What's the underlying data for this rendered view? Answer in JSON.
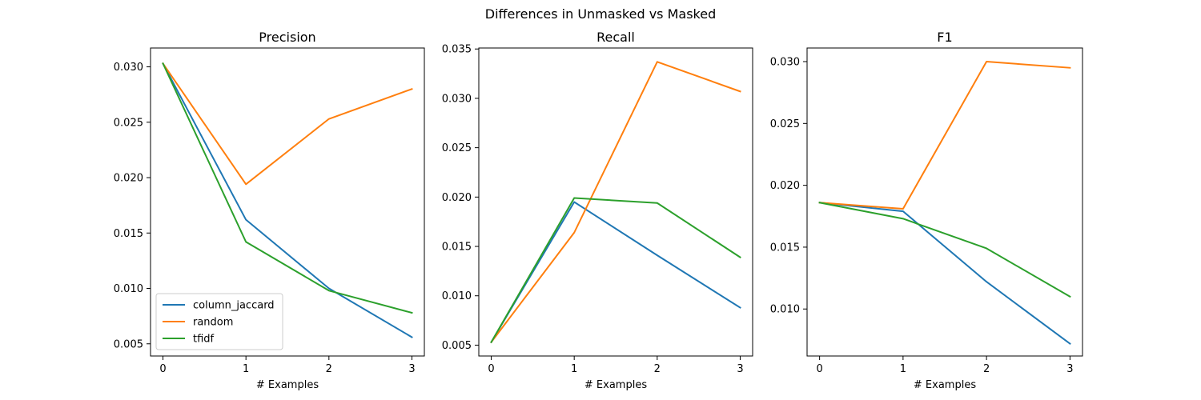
{
  "figure": {
    "suptitle": "Differences in Unmasked vs Masked"
  },
  "chart_data": [
    {
      "type": "line",
      "title": "Precision",
      "xlabel": "# Examples",
      "ylabel": "",
      "x": [
        0,
        1,
        2,
        3
      ],
      "xticks": [
        "0",
        "1",
        "2",
        "3"
      ],
      "xlim": [
        -0.15,
        3.15
      ],
      "ylim": [
        0.0039,
        0.0317
      ],
      "yticks": [
        0.005,
        0.01,
        0.015,
        0.02,
        0.025,
        0.03
      ],
      "ytick_labels": [
        "0.005",
        "0.010",
        "0.015",
        "0.020",
        "0.025",
        "0.030"
      ],
      "grid": false,
      "legend": "lower-left",
      "series": [
        {
          "name": "column_jaccard",
          "color": "#1f77b4",
          "values": [
            0.0303,
            0.0162,
            0.01,
            0.0056
          ]
        },
        {
          "name": "random",
          "color": "#ff7f0e",
          "values": [
            0.0303,
            0.0194,
            0.0253,
            0.028
          ]
        },
        {
          "name": "tfidf",
          "color": "#2ca02c",
          "values": [
            0.0303,
            0.0142,
            0.0098,
            0.0078
          ]
        }
      ]
    },
    {
      "type": "line",
      "title": "Recall",
      "xlabel": "# Examples",
      "ylabel": "",
      "x": [
        0,
        1,
        2,
        3
      ],
      "xticks": [
        "0",
        "1",
        "2",
        "3"
      ],
      "xlim": [
        -0.15,
        3.15
      ],
      "ylim": [
        0.0039,
        0.0351
      ],
      "yticks": [
        0.005,
        0.01,
        0.015,
        0.02,
        0.025,
        0.03,
        0.035
      ],
      "ytick_labels": [
        "0.005",
        "0.010",
        "0.015",
        "0.020",
        "0.025",
        "0.030",
        "0.035"
      ],
      "grid": false,
      "series": [
        {
          "name": "column_jaccard",
          "color": "#1f77b4",
          "values": [
            0.0053,
            0.0195,
            0.0141,
            0.0088
          ]
        },
        {
          "name": "random",
          "color": "#ff7f0e",
          "values": [
            0.0053,
            0.0164,
            0.0337,
            0.0307
          ]
        },
        {
          "name": "tfidf",
          "color": "#2ca02c",
          "values": [
            0.0053,
            0.0199,
            0.0194,
            0.0139
          ]
        }
      ]
    },
    {
      "type": "line",
      "title": "F1",
      "xlabel": "# Examples",
      "ylabel": "",
      "x": [
        0,
        1,
        2,
        3
      ],
      "xticks": [
        "0",
        "1",
        "2",
        "3"
      ],
      "xlim": [
        -0.15,
        3.15
      ],
      "ylim": [
        0.0062,
        0.0311
      ],
      "yticks": [
        0.01,
        0.015,
        0.02,
        0.025,
        0.03
      ],
      "ytick_labels": [
        "0.010",
        "0.015",
        "0.020",
        "0.025",
        "0.030"
      ],
      "grid": false,
      "series": [
        {
          "name": "column_jaccard",
          "color": "#1f77b4",
          "values": [
            0.0186,
            0.0179,
            0.0122,
            0.0072
          ]
        },
        {
          "name": "random",
          "color": "#ff7f0e",
          "values": [
            0.0186,
            0.0181,
            0.03,
            0.0295
          ]
        },
        {
          "name": "tfidf",
          "color": "#2ca02c",
          "values": [
            0.0186,
            0.0173,
            0.0149,
            0.011
          ]
        }
      ]
    }
  ]
}
